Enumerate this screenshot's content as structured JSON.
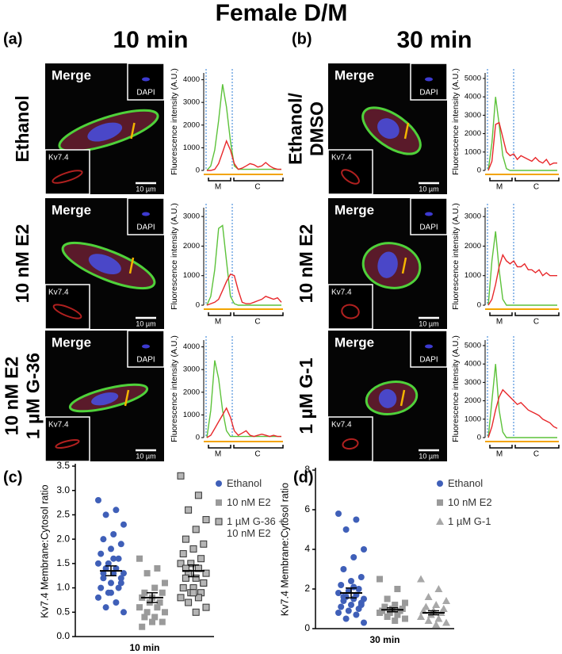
{
  "title": "Female D/M",
  "panels": [
    {
      "label": "(a)",
      "heading": "10 min",
      "rows": [
        {
          "condition": [
            "Ethanol"
          ],
          "micrograph": {
            "merge": "Merge",
            "dapi": "DAPI",
            "kv": "Kv7.4",
            "scale": "10 µm"
          }
        },
        {
          "condition": [
            "10 nM E2"
          ],
          "micrograph": {
            "merge": "Merge",
            "dapi": "DAPI",
            "kv": "Kv7.4",
            "scale": "10 µm"
          }
        },
        {
          "condition": [
            "10 nM E2",
            "1 µM G-36"
          ],
          "micrograph": {
            "merge": "Merge",
            "dapi": "DAPI",
            "kv": "Kv7.4",
            "scale": "10 µm"
          }
        }
      ]
    },
    {
      "label": "(b)",
      "heading": "30 min",
      "rows": [
        {
          "condition": [
            "Ethanol/",
            "DMSO"
          ],
          "micrograph": {
            "merge": "Merge",
            "dapi": "DAPI",
            "kv": "Kv7.4",
            "scale": "10 µm"
          }
        },
        {
          "condition": [
            "10 nM E2"
          ],
          "micrograph": {
            "merge": "Merge",
            "dapi": "DAPI",
            "kv": "Kv7.4",
            "scale": "10 µm"
          }
        },
        {
          "condition": [
            "1 µM G-1"
          ],
          "micrograph": {
            "merge": "Merge",
            "dapi": "DAPI",
            "kv": "Kv7.4",
            "scale": "10 µm"
          }
        }
      ]
    }
  ],
  "chart_data": [
    {
      "type": "line",
      "ylabel": "Fluorescence intensity (A.U.)",
      "ylim": [
        0,
        4300
      ],
      "yticks": [
        0,
        1000,
        2000,
        3000,
        4000
      ],
      "regions": [
        "M",
        "C"
      ],
      "series": [
        {
          "color": "#5cc23a",
          "values": [
            0,
            200,
            900,
            2200,
            3800,
            2800,
            1300,
            200,
            50,
            50,
            50,
            50,
            50,
            50,
            50,
            50,
            50,
            50,
            50,
            50
          ]
        },
        {
          "color": "#e8282b",
          "values": [
            0,
            0,
            50,
            300,
            800,
            1300,
            900,
            300,
            50,
            100,
            200,
            300,
            250,
            150,
            200,
            350,
            200,
            100,
            50,
            50
          ]
        }
      ]
    },
    {
      "type": "line",
      "ylabel": "Fluorescence intensity (A.U.)",
      "ylim": [
        0,
        3300
      ],
      "yticks": [
        0,
        1000,
        2000,
        3000
      ],
      "regions": [
        "M",
        "C"
      ],
      "series": [
        {
          "color": "#5cc23a",
          "values": [
            0,
            300,
            1200,
            2600,
            2700,
            1500,
            300,
            50,
            0,
            0,
            0,
            0,
            0,
            0,
            0,
            0,
            0,
            0,
            0,
            0
          ]
        },
        {
          "color": "#e8282b",
          "values": [
            0,
            50,
            100,
            200,
            500,
            800,
            1050,
            1000,
            500,
            100,
            50,
            50,
            100,
            150,
            200,
            300,
            250,
            200,
            250,
            100
          ]
        }
      ]
    },
    {
      "type": "line",
      "ylabel": "Fluorescence intensity (A.U.)",
      "ylim": [
        0,
        4300
      ],
      "yticks": [
        0,
        1000,
        2000,
        3000,
        4000
      ],
      "regions": [
        "M",
        "C"
      ],
      "series": [
        {
          "color": "#5cc23a",
          "values": [
            0,
            1200,
            3400,
            2600,
            1200,
            300,
            50,
            50,
            50,
            50,
            50,
            50,
            50,
            50,
            50,
            50,
            50,
            50,
            50,
            50
          ]
        },
        {
          "color": "#e8282b",
          "values": [
            0,
            100,
            400,
            700,
            1000,
            1300,
            900,
            300,
            100,
            200,
            300,
            100,
            50,
            100,
            150,
            100,
            50,
            100,
            50,
            50
          ]
        }
      ]
    },
    {
      "type": "line",
      "ylabel": "Fluorescence intensity (A.U.)",
      "ylim": [
        0,
        5300
      ],
      "yticks": [
        0,
        1000,
        2000,
        3000,
        4000,
        5000
      ],
      "regions": [
        "M",
        "C"
      ],
      "series": [
        {
          "color": "#5cc23a",
          "values": [
            0,
            1500,
            4000,
            2500,
            800,
            100,
            0,
            0,
            0,
            0,
            0,
            0,
            0,
            0,
            0,
            0,
            0,
            0,
            0,
            0
          ]
        },
        {
          "color": "#e8282b",
          "values": [
            0,
            500,
            2500,
            2600,
            1800,
            1000,
            800,
            900,
            600,
            800,
            700,
            600,
            500,
            700,
            500,
            400,
            600,
            300,
            400,
            400
          ]
        }
      ]
    },
    {
      "type": "line",
      "ylabel": "Fluorescence intensity (A.U.)",
      "ylim": [
        0,
        3300
      ],
      "yticks": [
        0,
        1000,
        2000,
        3000
      ],
      "regions": [
        "M",
        "C"
      ],
      "series": [
        {
          "color": "#5cc23a",
          "values": [
            0,
            1500,
            2500,
            1200,
            200,
            0,
            0,
            0,
            0,
            0,
            0,
            0,
            0,
            0,
            0,
            0,
            0,
            0,
            0,
            0
          ]
        },
        {
          "color": "#e8282b",
          "values": [
            0,
            200,
            700,
            1300,
            1700,
            1500,
            1400,
            1500,
            1300,
            1300,
            1400,
            1200,
            1200,
            1100,
            1200,
            1000,
            1100,
            1000,
            1000,
            1000
          ]
        }
      ]
    },
    {
      "type": "line",
      "ylabel": "Fluorescence intensity (A.U.)",
      "ylim": [
        0,
        5300
      ],
      "yticks": [
        0,
        1000,
        2000,
        3000,
        4000,
        5000
      ],
      "regions": [
        "M",
        "C"
      ],
      "series": [
        {
          "color": "#5cc23a",
          "values": [
            0,
            2000,
            4000,
            1500,
            300,
            0,
            0,
            0,
            0,
            0,
            0,
            0,
            0,
            0,
            0,
            0,
            0,
            0,
            0,
            0
          ]
        },
        {
          "color": "#e8282b",
          "values": [
            0,
            600,
            1500,
            2200,
            2600,
            2400,
            2200,
            2000,
            1800,
            1900,
            1700,
            1500,
            1400,
            1300,
            1200,
            1000,
            900,
            800,
            600,
            500
          ]
        }
      ]
    },
    {
      "type": "scatter",
      "panel": "(c)",
      "xlabel": "10 min",
      "ylabel": "Kv7.4 Membrane:Cytosol ratio",
      "ylim": [
        0,
        3.5
      ],
      "yticks": [
        {
          "value": 0,
          "label": "0.0"
        },
        0.5,
        {
          "value": 1,
          "label": "1.0"
        },
        1.5,
        {
          "value": 2,
          "label": "2.0"
        },
        2.5,
        {
          "value": 3,
          "label": "3.0"
        },
        3.5
      ],
      "series": [
        {
          "name": "Ethanol",
          "color": "#3f5fb8",
          "marker": "circle",
          "mean": 1.35,
          "sem": 0.1,
          "values": [
            2.8,
            2.6,
            2.5,
            2.3,
            2.1,
            2.0,
            1.9,
            1.8,
            1.7,
            1.6,
            1.5,
            1.5,
            1.4,
            1.4,
            1.3,
            1.3,
            1.2,
            1.2,
            1.1,
            1.0,
            1.0,
            0.9,
            0.8,
            0.7,
            0.6,
            0.5,
            1.6,
            1.3,
            1.1,
            0.9
          ]
        },
        {
          "name": "10 nM E2",
          "color": "#9a9a9a",
          "marker": "square",
          "mean": 0.8,
          "sem": 0.1,
          "values": [
            1.6,
            1.4,
            1.3,
            1.1,
            1.0,
            0.9,
            0.9,
            0.8,
            0.8,
            0.7,
            0.7,
            0.6,
            0.6,
            0.5,
            0.5,
            0.4,
            0.4,
            0.3,
            0.3,
            0.2
          ]
        },
        {
          "name": "1 µM G-36 + 10 nM E2",
          "color": "#b5b5b5",
          "marker": "square-outline",
          "mean": 1.35,
          "sem": 0.12,
          "values": [
            3.3,
            2.9,
            2.6,
            2.4,
            2.2,
            2.0,
            1.9,
            1.8,
            1.7,
            1.6,
            1.5,
            1.5,
            1.4,
            1.3,
            1.3,
            1.2,
            1.2,
            1.1,
            1.0,
            1.0,
            0.9,
            0.9,
            0.8,
            0.8,
            0.7,
            0.6,
            0.5,
            1.4,
            1.1,
            0.9
          ]
        }
      ]
    },
    {
      "type": "scatter",
      "panel": "(d)",
      "xlabel": "30 min",
      "ylabel": "Kv7.4 Membrane:Cytosol ratio",
      "ylim": [
        0,
        8
      ],
      "yticks": [
        0,
        2,
        4,
        6,
        8
      ],
      "series": [
        {
          "name": "Ethanol",
          "color": "#3f5fb8",
          "marker": "circle",
          "mean": 1.8,
          "sem": 0.25,
          "values": [
            5.8,
            5.5,
            5.0,
            4.0,
            3.6,
            3.0,
            2.6,
            2.4,
            2.2,
            2.0,
            1.9,
            1.8,
            1.7,
            1.6,
            1.5,
            1.5,
            1.4,
            1.3,
            1.2,
            1.1,
            1.0,
            0.9,
            0.8,
            0.7,
            0.5,
            0.3,
            2.1,
            1.6,
            1.2
          ]
        },
        {
          "name": "10 nM E2",
          "color": "#9a9a9a",
          "marker": "square",
          "mean": 0.95,
          "sem": 0.1,
          "values": [
            2.5,
            2.0,
            1.5,
            1.3,
            1.2,
            1.1,
            1.0,
            1.0,
            0.9,
            0.9,
            0.8,
            0.8,
            0.7,
            0.6,
            0.5,
            0.4
          ]
        },
        {
          "name": "1 µM G-1",
          "color": "#a8a8a8",
          "marker": "triangle",
          "mean": 0.8,
          "sem": 0.1,
          "values": [
            2.5,
            2.0,
            1.6,
            1.4,
            1.2,
            1.1,
            1.0,
            0.9,
            0.9,
            0.8,
            0.7,
            0.6,
            0.5,
            0.4,
            0.3,
            0.2
          ]
        }
      ]
    }
  ]
}
